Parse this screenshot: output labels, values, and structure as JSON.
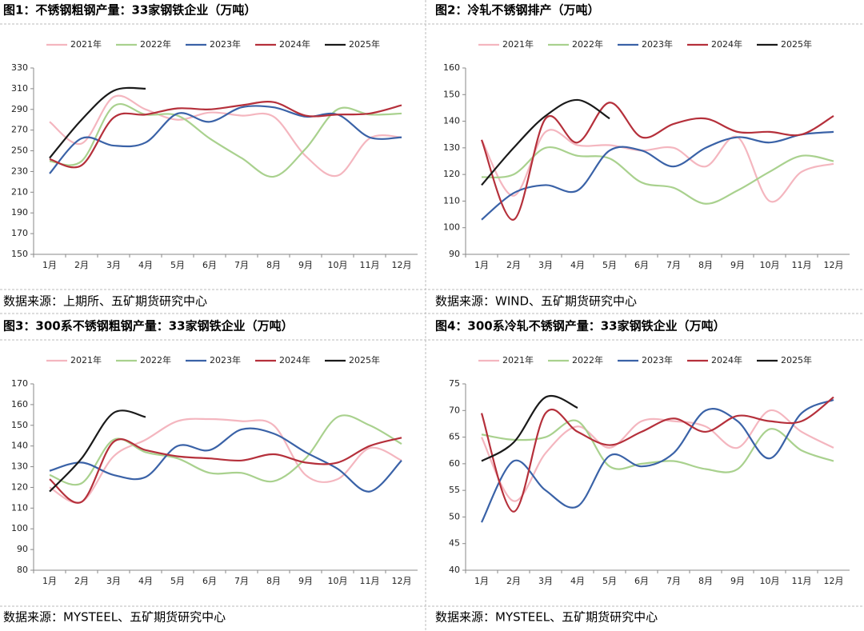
{
  "chart_data": [
    {
      "type": "line",
      "title": "图1：不锈钢粗钢产量：33家钢铁企业（万吨）",
      "source": "数据来源：上期所、五矿期货研究中心",
      "categories": [
        "1月",
        "2月",
        "3月",
        "4月",
        "5月",
        "6月",
        "7月",
        "8月",
        "9月",
        "10月",
        "11月",
        "12月"
      ],
      "ylim": [
        150,
        330
      ],
      "yticks": [
        150,
        170,
        190,
        210,
        230,
        250,
        270,
        290,
        310,
        330
      ],
      "series": [
        {
          "name": "2021年",
          "color": "#f4b6bf",
          "values": [
            278,
            257,
            302,
            290,
            280,
            287,
            284,
            283,
            245,
            226,
            262,
            263
          ]
        },
        {
          "name": "2022年",
          "color": "#a9d18e",
          "values": [
            240,
            240,
            293,
            285,
            284,
            262,
            243,
            225,
            252,
            290,
            285,
            286
          ]
        },
        {
          "name": "2023年",
          "color": "#3a62a7",
          "values": [
            228,
            262,
            255,
            258,
            286,
            278,
            292,
            292,
            283,
            285,
            263,
            263
          ]
        },
        {
          "name": "2024年",
          "color": "#b5303b",
          "values": [
            242,
            236,
            282,
            285,
            291,
            290,
            294,
            297,
            284,
            285,
            286,
            294
          ]
        },
        {
          "name": "2025年",
          "color": "#1a1a1a",
          "values": [
            243,
            280,
            308,
            310,
            null,
            null,
            null,
            null,
            null,
            null,
            null,
            null
          ]
        }
      ]
    },
    {
      "type": "line",
      "title": "图2：冷轧不锈钢排产（万吨）",
      "source": "数据来源：WIND、五矿期货研究中心",
      "categories": [
        "1月",
        "2月",
        "3月",
        "4月",
        "5月",
        "6月",
        "7月",
        "8月",
        "9月",
        "10月",
        "11月",
        "12月"
      ],
      "ylim": [
        90,
        160
      ],
      "yticks": [
        90,
        100,
        110,
        120,
        130,
        140,
        150,
        160
      ],
      "series": [
        {
          "name": "2021年",
          "color": "#f4b6bf",
          "values": [
            133,
            112,
            136,
            131,
            131,
            129,
            130,
            123,
            134,
            110,
            121,
            124
          ]
        },
        {
          "name": "2022年",
          "color": "#a9d18e",
          "values": [
            119,
            120,
            130,
            127,
            126,
            117,
            115,
            109,
            114,
            121,
            127,
            125
          ]
        },
        {
          "name": "2023年",
          "color": "#3a62a7",
          "values": [
            103,
            113,
            116,
            114,
            129,
            129,
            123,
            130,
            134,
            132,
            135,
            136
          ]
        },
        {
          "name": "2024年",
          "color": "#b5303b",
          "values": [
            133,
            103,
            141,
            132,
            147,
            134,
            139,
            141,
            136,
            136,
            135,
            142
          ]
        },
        {
          "name": "2025年",
          "color": "#1a1a1a",
          "values": [
            116,
            130,
            142,
            148,
            141,
            null,
            null,
            null,
            null,
            null,
            null,
            null
          ]
        }
      ]
    },
    {
      "type": "line",
      "title": "图3：300系不锈钢粗钢产量：33家钢铁企业（万吨）",
      "source": "数据来源：MYSTEEL、五矿期货研究中心",
      "categories": [
        "1月",
        "2月",
        "3月",
        "4月",
        "5月",
        "6月",
        "7月",
        "8月",
        "9月",
        "10月",
        "11月",
        "12月"
      ],
      "ylim": [
        80,
        170
      ],
      "yticks": [
        80,
        90,
        100,
        110,
        120,
        130,
        140,
        150,
        160,
        170
      ],
      "series": [
        {
          "name": "2021年",
          "color": "#f4b6bf",
          "values": [
            120,
            113,
            135,
            143,
            152,
            153,
            152,
            150,
            126,
            124,
            139,
            133
          ]
        },
        {
          "name": "2022年",
          "color": "#a9d18e",
          "values": [
            126,
            122,
            143,
            137,
            134,
            127,
            127,
            123,
            134,
            154,
            150,
            141
          ]
        },
        {
          "name": "2023年",
          "color": "#3a62a7",
          "values": [
            128,
            132,
            126,
            125,
            140,
            138,
            148,
            146,
            137,
            129,
            118,
            133
          ]
        },
        {
          "name": "2024年",
          "color": "#b5303b",
          "values": [
            124,
            113,
            142,
            138,
            135,
            134,
            133,
            136,
            132,
            132,
            140,
            144
          ]
        },
        {
          "name": "2025年",
          "color": "#1a1a1a",
          "values": [
            118,
            134,
            156,
            154,
            null,
            null,
            null,
            null,
            null,
            null,
            null,
            null
          ]
        }
      ]
    },
    {
      "type": "line",
      "title": "图4：300系冷轧不锈钢产量：33家钢铁企业（万吨）",
      "source": "数据来源：MYSTEEL、五矿期货研究中心",
      "categories": [
        "1月",
        "2月",
        "3月",
        "4月",
        "5月",
        "6月",
        "7月",
        "8月",
        "9月",
        "10月",
        "11月",
        "12月"
      ],
      "ylim": [
        40,
        75
      ],
      "yticks": [
        40,
        45,
        50,
        55,
        60,
        65,
        70,
        75
      ],
      "series": [
        {
          "name": "2021年",
          "color": "#f4b6bf",
          "values": [
            65,
            53,
            62,
            67,
            63,
            68,
            68,
            67,
            63,
            70,
            66,
            63
          ]
        },
        {
          "name": "2022年",
          "color": "#a9d18e",
          "values": [
            65.5,
            64.5,
            65,
            68,
            59.5,
            60,
            60.5,
            59,
            59,
            66.5,
            62.5,
            60.5
          ]
        },
        {
          "name": "2023年",
          "color": "#3a62a7",
          "values": [
            49,
            60.5,
            55,
            52,
            61.5,
            59.5,
            62,
            70,
            68,
            61,
            69.5,
            72
          ]
        },
        {
          "name": "2024年",
          "color": "#b5303b",
          "values": [
            69.5,
            51,
            69.5,
            66,
            63.5,
            66,
            68.5,
            66,
            69,
            68,
            68,
            72.5
          ]
        },
        {
          "name": "2025年",
          "color": "#1a1a1a",
          "values": [
            60.5,
            64,
            72.5,
            70.5,
            null,
            null,
            null,
            null,
            null,
            null,
            null,
            null
          ]
        }
      ]
    }
  ]
}
